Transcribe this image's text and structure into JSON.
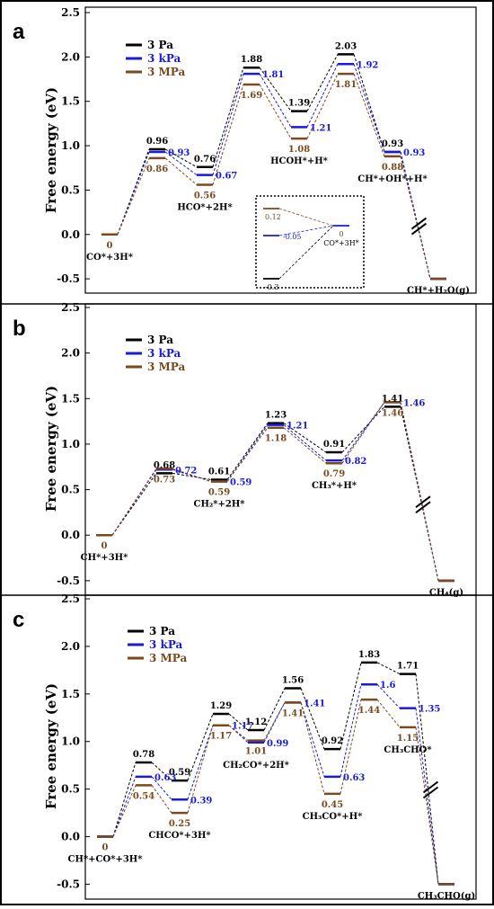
{
  "colors": {
    "p3pa": "#000000",
    "p3kpa": "#1a1adb",
    "p3mpa": "#7a4a1e",
    "frame": "#000000",
    "ylabel_text": "#000000"
  },
  "chart_data": [
    {
      "type": "line",
      "panel": "a",
      "ylabel": "Free energy  (eV)",
      "ylim": [
        -0.6,
        2.5
      ],
      "yticks": [
        "2.5",
        "2.0",
        "1.5",
        "1.0",
        "0.5",
        "0.0",
        "-0.5"
      ],
      "legend": [
        {
          "name": "3 Pa",
          "color": "#000000"
        },
        {
          "name": "3 kPa",
          "color": "#1a1adb"
        },
        {
          "name": "3 MPa",
          "color": "#7a4a1e"
        }
      ],
      "legend_position": "top-left",
      "states": [
        "CO*+3H*",
        "",
        "HCO*+2H*",
        "",
        "HCOH*+H*",
        "",
        "CH*+OH*+H*",
        "CH*+H₂O(g)"
      ],
      "series": [
        {
          "name": "3 Pa",
          "values": [
            0,
            0.96,
            0.76,
            1.88,
            1.39,
            2.03,
            0.93,
            -0.5
          ],
          "labels": [
            "",
            "0.96",
            "0.76",
            "1.88",
            "1.39",
            "2.03",
            "0.93",
            ""
          ]
        },
        {
          "name": "3 kPa",
          "values": [
            0,
            0.93,
            0.67,
            1.81,
            1.21,
            1.92,
            0.93,
            -0.5
          ],
          "labels": [
            "",
            "0.93",
            "0.67",
            "1.81",
            "1.21",
            "1.92",
            "0.93",
            ""
          ]
        },
        {
          "name": "3 MPa",
          "values": [
            0,
            0.86,
            0.56,
            1.69,
            1.08,
            1.81,
            0.88,
            -0.5
          ],
          "labels": [
            "0",
            "0.86",
            "0.56",
            "1.69",
            "1.08",
            "1.81",
            "0.88",
            ""
          ]
        }
      ],
      "inset": {
        "values": [
          "0.12",
          "-0.05",
          "-0.3"
        ],
        "end_value": "0",
        "end_label": "CO*+3H*"
      }
    },
    {
      "type": "line",
      "panel": "b",
      "ylabel": "Free energy  (eV)",
      "ylim": [
        -0.6,
        2.5
      ],
      "yticks": [
        "2.5",
        "2.0",
        "1.5",
        "1.0",
        "0.5",
        "0.0",
        "-0.5"
      ],
      "legend": [
        {
          "name": "3 Pa",
          "color": "#000000"
        },
        {
          "name": "3 kPa",
          "color": "#1a1adb"
        },
        {
          "name": "3 MPa",
          "color": "#7a4a1e"
        }
      ],
      "legend_position": "top-left",
      "states": [
        "CH*+3H*",
        "",
        "CH₂*+2H*",
        "",
        "CH₃*+H*",
        "",
        "CH₄(g)"
      ],
      "series": [
        {
          "name": "3 Pa",
          "values": [
            0,
            0.68,
            0.61,
            1.23,
            0.91,
            1.41,
            -0.5
          ],
          "labels": [
            "",
            "0.68",
            "0.61",
            "1.23",
            "0.91",
            "1.41",
            ""
          ]
        },
        {
          "name": "3 kPa",
          "values": [
            0,
            0.72,
            0.59,
            1.21,
            0.82,
            1.46,
            -0.5
          ],
          "labels": [
            "",
            "0.72",
            "0.59",
            "1.21",
            "0.82",
            "1.46",
            ""
          ]
        },
        {
          "name": "3 MPa",
          "values": [
            0,
            0.73,
            0.59,
            1.18,
            0.79,
            1.46,
            -0.5
          ],
          "labels": [
            "0",
            "0.73",
            "0.59",
            "1.18",
            "0.79",
            "1.46",
            ""
          ]
        }
      ]
    },
    {
      "type": "line",
      "panel": "c",
      "ylabel": "Free energy  (eV)",
      "ylim": [
        -0.6,
        2.5
      ],
      "yticks": [
        "2.5",
        "2.0",
        "1.5",
        "1.0",
        "0.5",
        "0.0",
        "-0.5"
      ],
      "legend": [
        {
          "name": "3 Pa",
          "color": "#000000"
        },
        {
          "name": "3 kPa",
          "color": "#1a1adb"
        },
        {
          "name": "3 MPa",
          "color": "#7a4a1e"
        }
      ],
      "legend_position": "top-center",
      "states": [
        "CH*+CO*+3H*",
        "",
        "CHCO*+3H*",
        "",
        "CH₂CO*+2H*",
        "",
        "CH₃CO*+H*",
        "",
        "CH₃CHO*",
        "CH₃CHO(g)"
      ],
      "series": [
        {
          "name": "3 Pa",
          "values": [
            0,
            0.78,
            0.59,
            1.29,
            1.12,
            1.56,
            0.92,
            1.83,
            1.71,
            -0.5
          ],
          "labels": [
            "",
            "0.78",
            "0.59",
            "1.29",
            "1.12",
            "1.56",
            "0.92",
            "1.83",
            "1.71",
            ""
          ]
        },
        {
          "name": "3 kPa",
          "values": [
            0,
            0.63,
            0.39,
            1.17,
            0.99,
            1.41,
            0.63,
            1.6,
            1.35,
            -0.5
          ],
          "labels": [
            "",
            "0.63",
            "0.39",
            "1.17",
            "0.99",
            "1.41",
            "0.63",
            "1.6",
            "1.35",
            ""
          ]
        },
        {
          "name": "3 MPa",
          "values": [
            0,
            0.54,
            0.25,
            1.17,
            1.01,
            1.41,
            0.45,
            1.44,
            1.15,
            -0.5
          ],
          "labels": [
            "0",
            "0.54",
            "0.25",
            "1.17",
            "1.01",
            "1.41",
            "0.45",
            "1.44",
            "1.15",
            ""
          ]
        }
      ]
    }
  ]
}
